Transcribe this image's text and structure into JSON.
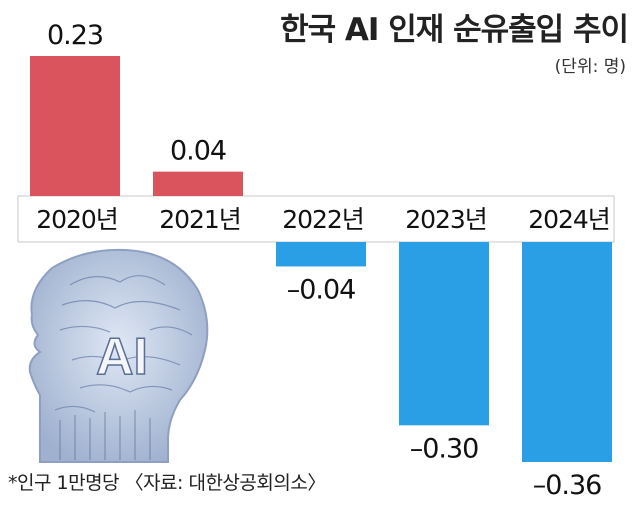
{
  "chart_data": {
    "type": "bar",
    "title": "한국 AI 인재 순유출입 추이",
    "unit_label": "(단위: 명)",
    "categories": [
      "2020년",
      "2021년",
      "2022년",
      "2023년",
      "2024년"
    ],
    "values": [
      0.23,
      0.04,
      -0.04,
      -0.3,
      -0.36
    ],
    "value_labels": [
      "0.23",
      "0.04",
      "–0.04",
      "–0.30",
      "–0.36"
    ],
    "positive_color": "#d9545c",
    "negative_color": "#2b9fe6",
    "ylim": [
      -0.36,
      0.23
    ],
    "grid": false,
    "legend": "none",
    "footnote": "*인구 1만명당 〈자료: 대한상공회의소〉",
    "image_text": "AI"
  }
}
